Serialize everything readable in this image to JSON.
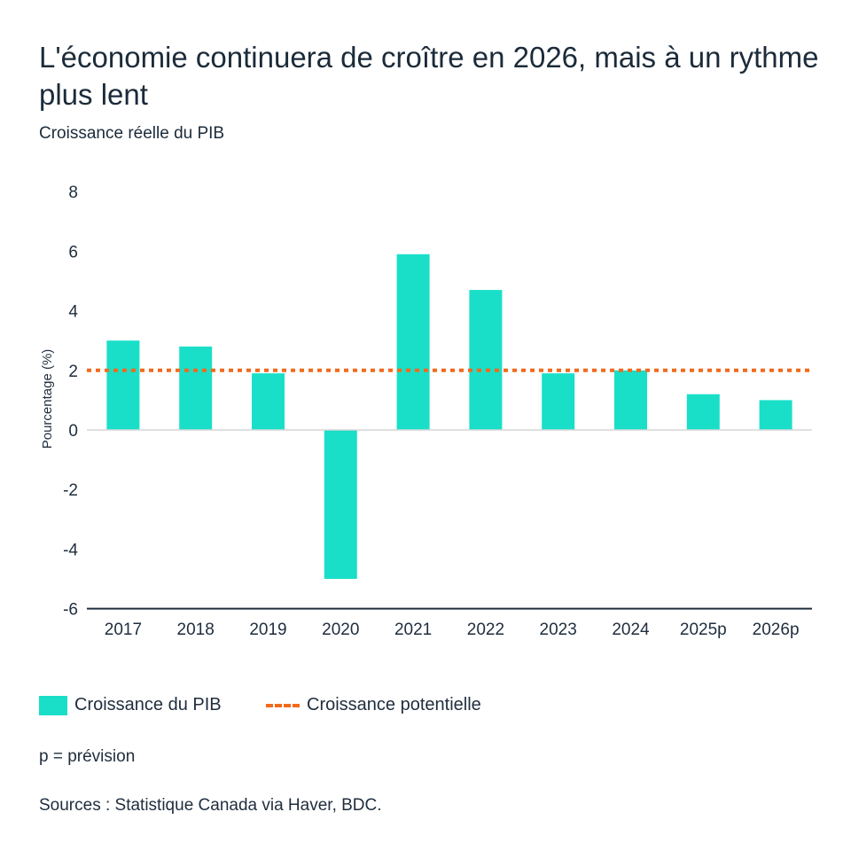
{
  "title": "L'économie continuera de croître en 2026, mais à un rythme plus lent",
  "subtitle": "Croissance réelle du PIB",
  "note": "p = prévision",
  "source": "Sources : Statistique Canada via Haver, BDC.",
  "chart_data": {
    "type": "bar",
    "title": "L'économie continuera de croître en 2026, mais à un rythme plus lent",
    "subtitle": "Croissance réelle du PIB",
    "xlabel": "",
    "ylabel": "Pourcentage (%)",
    "ylim": [
      -6,
      8
    ],
    "yticks": [
      "8",
      "6",
      "4",
      "2",
      "0",
      "-2",
      "-4",
      "-6"
    ],
    "categories": [
      "2017",
      "2018",
      "2019",
      "2020",
      "2021",
      "2022",
      "2023",
      "2024",
      "2025p",
      "2026p"
    ],
    "series": [
      {
        "name": "Croissance du PIB",
        "type": "bar",
        "color": "#19dfc9",
        "values": [
          3.0,
          2.8,
          1.9,
          -5.0,
          5.9,
          4.7,
          1.9,
          2.0,
          1.2,
          1.0
        ]
      },
      {
        "name": "Croissance potentielle",
        "type": "dashed-line",
        "color": "#f26a1b",
        "value": 2.0
      }
    ],
    "grid": false,
    "legend": "bottom-left"
  }
}
